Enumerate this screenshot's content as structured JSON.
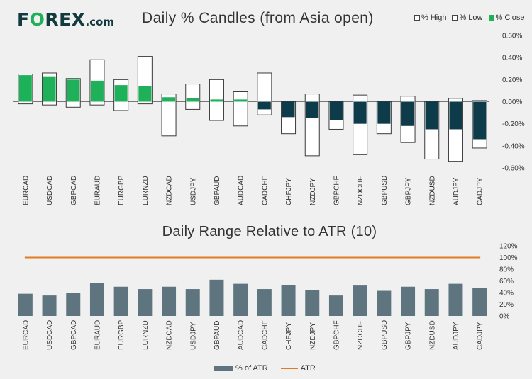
{
  "header": {
    "logo_prefix": "F",
    "logo_accent": "O",
    "logo_main": "REX",
    "logo_suffix": ".com",
    "title": "Daily % Candles (from Asia open)"
  },
  "legend_top": {
    "high": "% High",
    "low": "% Low",
    "close": "% Close"
  },
  "legend_bottom": {
    "bar": "% of ATR",
    "line": "ATR"
  },
  "colors": {
    "positive_close": "#1fb05a",
    "negative_close": "#0d3b4a",
    "atr_bar": "#5e7580",
    "atr_line": "#e07b20"
  },
  "chart_data": [
    {
      "type": "candlestick",
      "title": "Daily % Candles (from Asia open)",
      "categories": [
        "EURCAD",
        "USDCAD",
        "GBPCAD",
        "EURAUD",
        "EURGBP",
        "EURNZD",
        "NZDCAD",
        "USDJPY",
        "GBPAUD",
        "AUDCAD",
        "CADCHF",
        "CHFJPY",
        "NZDJPY",
        "GBPCHF",
        "NZDCHF",
        "GBPUSD",
        "GBPJPY",
        "NZDUSD",
        "AUDJPY",
        "CADJPY"
      ],
      "series": [
        {
          "name": "% High",
          "values": [
            0.25,
            0.26,
            0.21,
            0.38,
            0.2,
            0.41,
            0.07,
            0.16,
            0.2,
            0.09,
            0.26,
            0.0,
            0.07,
            0.0,
            0.06,
            0.0,
            0.05,
            0.0,
            0.03,
            0.01
          ]
        },
        {
          "name": "% Low",
          "values": [
            -0.02,
            -0.03,
            -0.05,
            -0.03,
            -0.08,
            -0.02,
            -0.31,
            -0.07,
            -0.17,
            -0.22,
            -0.12,
            -0.29,
            -0.49,
            -0.25,
            -0.48,
            -0.29,
            -0.37,
            -0.52,
            -0.54,
            -0.42
          ]
        },
        {
          "name": "% Close",
          "values": [
            0.24,
            0.23,
            0.2,
            0.19,
            0.15,
            0.14,
            0.04,
            0.03,
            0.02,
            0.02,
            -0.07,
            -0.14,
            -0.15,
            -0.17,
            -0.2,
            -0.2,
            -0.22,
            -0.25,
            -0.25,
            -0.34
          ]
        }
      ],
      "yticks": [
        "0.60%",
        "0.40%",
        "0.20%",
        "0.00%",
        "-0.20%",
        "-0.40%",
        "-0.60%"
      ],
      "ylim": [
        -0.6,
        0.6
      ]
    },
    {
      "type": "bar",
      "title": "Daily Range Relative to ATR (10)",
      "categories": [
        "EURCAD",
        "USDCAD",
        "GBPCAD",
        "EURAUD",
        "EURGBP",
        "EURNZD",
        "NZDCAD",
        "USDJPY",
        "GBPAUD",
        "AUDCAD",
        "CADCHF",
        "CHFJPY",
        "NZDJPY",
        "GBPCHF",
        "NZDCHF",
        "GBPUSD",
        "GBPJPY",
        "NZDUSD",
        "AUDJPY",
        "CADJPY"
      ],
      "series": [
        {
          "name": "% of ATR",
          "values": [
            38,
            35,
            39,
            56,
            50,
            46,
            50,
            46,
            62,
            55,
            46,
            53,
            44,
            35,
            52,
            43,
            50,
            46,
            55,
            48
          ]
        },
        {
          "name": "ATR",
          "values": [
            100,
            100,
            100,
            100,
            100,
            100,
            100,
            100,
            100,
            100,
            100,
            100,
            100,
            100,
            100,
            100,
            100,
            100,
            100,
            100
          ]
        }
      ],
      "yticks": [
        "120%",
        "100%",
        "80%",
        "60%",
        "40%",
        "20%",
        "0%"
      ],
      "ylim": [
        0,
        120
      ]
    }
  ]
}
